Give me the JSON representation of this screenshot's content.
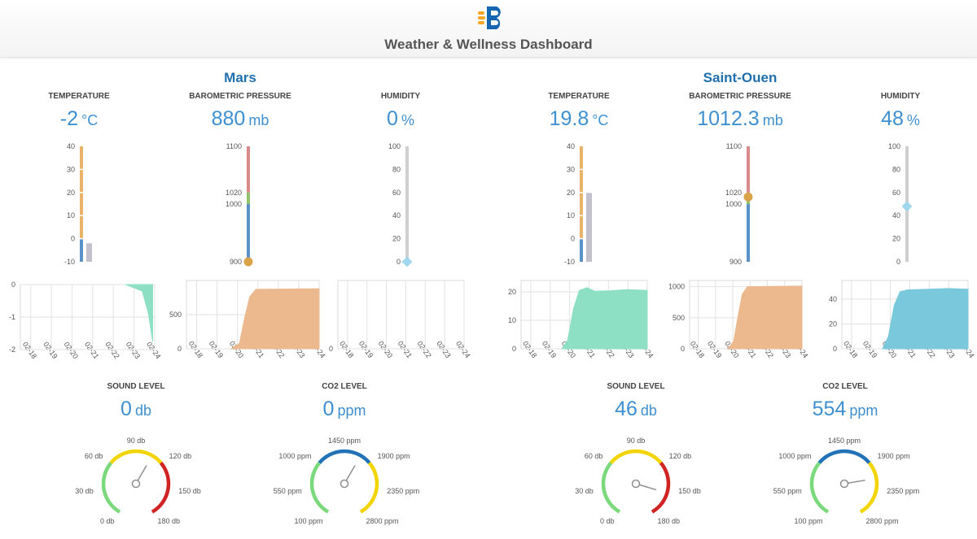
{
  "header": {
    "title": "Weather & Wellness Dashboard"
  },
  "colors": {
    "accent": "#3e8fd0",
    "title_blue": "#1f6fad",
    "gauge_green": "#7ad97a",
    "gauge_yellow": "#f2d400",
    "gauge_red": "#d02424",
    "gauge_blue": "#2272b8",
    "temp_area": "#8de0c4",
    "pressure_area": "#ebb98d",
    "humidity_area": "#79c8dc"
  },
  "stations": [
    {
      "name": "Mars",
      "temperature": {
        "label": "TEMPERATURE",
        "value": "-2",
        "unit": "°C",
        "numeric": -2
      },
      "pressure": {
        "label": "BAROMETRIC PRESSURE",
        "value": "880",
        "unit": "mb",
        "numeric": 880
      },
      "humidity": {
        "label": "HUMIDITY",
        "value": "0",
        "unit": "%",
        "numeric": 0
      },
      "sound": {
        "label": "SOUND LEVEL",
        "value": "0",
        "unit": "db",
        "numeric": 0
      },
      "co2": {
        "label": "CO2 LEVEL",
        "value": "0",
        "unit": "ppm",
        "numeric": 0
      }
    },
    {
      "name": "Saint-Ouen",
      "temperature": {
        "label": "TEMPERATURE",
        "value": "19.8",
        "unit": "°C",
        "numeric": 19.8
      },
      "pressure": {
        "label": "BAROMETRIC PRESSURE",
        "value": "1012.3",
        "unit": "mb",
        "numeric": 1012.3
      },
      "humidity": {
        "label": "HUMIDITY",
        "value": "48",
        "unit": "%",
        "numeric": 48
      },
      "sound": {
        "label": "SOUND LEVEL",
        "value": "46",
        "unit": "db",
        "numeric": 46
      },
      "co2": {
        "label": "CO2 LEVEL",
        "value": "554",
        "unit": "ppm",
        "numeric": 554
      }
    }
  ],
  "thermometers": {
    "temperature": {
      "ticks": [
        "40",
        "30",
        "20",
        "10",
        "0",
        "-10"
      ],
      "min": -10,
      "max": 40
    },
    "pressure": {
      "ticks": [
        "1100",
        "1020",
        "1000",
        "900"
      ],
      "min": 900,
      "max": 1100
    },
    "humidity": {
      "ticks": [
        "100",
        "80",
        "60",
        "40",
        "20",
        "0"
      ],
      "min": 0,
      "max": 100
    }
  },
  "gauges": {
    "sound": {
      "min": 0,
      "max": 180,
      "ticks": [
        "0 db",
        "30 db",
        "60 db",
        "90 db",
        "120 db",
        "150 db",
        "180 db"
      ]
    },
    "co2": {
      "min": 100,
      "max": 2800,
      "ticks": [
        "100 ppm",
        "550 ppm",
        "1000 ppm",
        "1450 ppm",
        "1900 ppm",
        "2350 ppm",
        "2800 ppm"
      ]
    }
  },
  "chart_data": [
    {
      "type": "area",
      "station": "Mars",
      "metric": "temperature",
      "x": [
        "02-18",
        "02-19",
        "02-20",
        "02-21",
        "02-22",
        "02-23",
        "02-24"
      ],
      "x_num": [
        0,
        1,
        2,
        3,
        4,
        5,
        6
      ],
      "ylim": [
        -2,
        0
      ],
      "yticks": [
        "0",
        "-1",
        "-2"
      ],
      "points": [
        [
          5.1,
          0
        ],
        [
          5.9,
          -0.2
        ],
        [
          6.2,
          -0.9
        ],
        [
          6.4,
          -1.75
        ]
      ],
      "baseline": 0
    },
    {
      "type": "area",
      "station": "Mars",
      "metric": "pressure",
      "x": [
        "02-18",
        "02-19",
        "02-20",
        "02-21",
        "02-22",
        "02-23",
        "02-24"
      ],
      "x_num": [
        0,
        1,
        2,
        3,
        4,
        5,
        6
      ],
      "ylim": [
        0,
        1000
      ],
      "yticks": [
        "500",
        "0"
      ],
      "points": [
        [
          2.2,
          0
        ],
        [
          2.6,
          80
        ],
        [
          2.85,
          450
        ],
        [
          3.1,
          760
        ],
        [
          3.4,
          870
        ],
        [
          6.5,
          880
        ]
      ],
      "baseline": 0
    },
    {
      "type": "area",
      "station": "Mars",
      "metric": "humidity",
      "x": [
        "02-18",
        "02-19",
        "02-20",
        "02-21",
        "02-22",
        "02-23",
        "02-24"
      ],
      "x_num": [
        0,
        1,
        2,
        3,
        4,
        5,
        6
      ],
      "ylim": [
        0,
        1
      ],
      "yticks": [
        "0"
      ],
      "points": [],
      "baseline": 0
    },
    {
      "type": "area",
      "station": "Saint-Ouen",
      "metric": "temperature",
      "x": [
        "02-18",
        "02-19",
        "02-20",
        "02-21",
        "02-22",
        "02-23",
        "02-24"
      ],
      "x_num": [
        0,
        1,
        2,
        3,
        4,
        5,
        6
      ],
      "ylim": [
        0,
        24
      ],
      "yticks": [
        "20",
        "10",
        "0"
      ],
      "points": [
        [
          2.1,
          0
        ],
        [
          2.4,
          3
        ],
        [
          2.7,
          14
        ],
        [
          3.0,
          20.5
        ],
        [
          3.4,
          21.5
        ],
        [
          3.8,
          20.2
        ],
        [
          4.6,
          20.4
        ],
        [
          5.5,
          20.8
        ],
        [
          6.5,
          20.5
        ]
      ],
      "baseline": 0
    },
    {
      "type": "area",
      "station": "Saint-Ouen",
      "metric": "pressure",
      "x": [
        "02-18",
        "02-19",
        "02-20",
        "02-21",
        "02-22",
        "02-23",
        "02-24"
      ],
      "x_num": [
        0,
        1,
        2,
        3,
        4,
        5,
        6
      ],
      "ylim": [
        0,
        1100
      ],
      "yticks": [
        "1000",
        "500",
        "0"
      ],
      "points": [
        [
          2.2,
          0
        ],
        [
          2.55,
          120
        ],
        [
          2.8,
          520
        ],
        [
          3.05,
          880
        ],
        [
          3.35,
          1000
        ],
        [
          6.5,
          1010
        ]
      ],
      "baseline": 0
    },
    {
      "type": "area",
      "station": "Saint-Ouen",
      "metric": "humidity",
      "x": [
        "02-18",
        "02-19",
        "02-20",
        "02-21",
        "02-22",
        "02-23",
        "02-24"
      ],
      "x_num": [
        0,
        1,
        2,
        3,
        4,
        5,
        6
      ],
      "ylim": [
        0,
        55
      ],
      "yticks": [
        "40",
        "20",
        "0"
      ],
      "points": [
        [
          2.1,
          0
        ],
        [
          2.4,
          10
        ],
        [
          2.7,
          35
        ],
        [
          3.0,
          46
        ],
        [
          3.4,
          47.5
        ],
        [
          4.5,
          48
        ],
        [
          5.5,
          48.5
        ],
        [
          6.5,
          48
        ]
      ],
      "baseline": 0
    }
  ]
}
